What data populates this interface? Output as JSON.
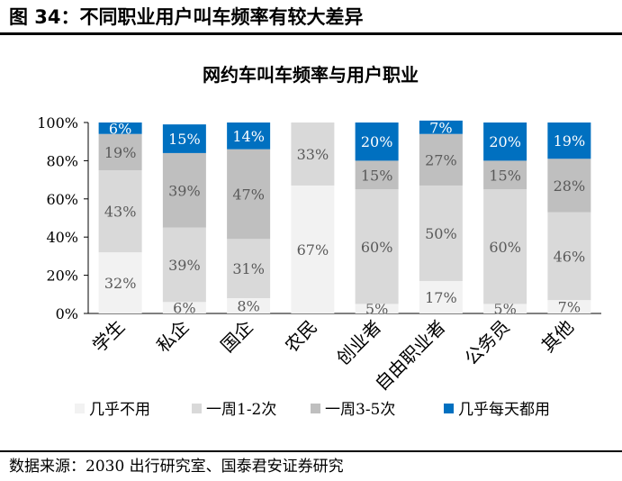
{
  "figure": {
    "title": "图 34：不同职业用户叫车频率有较大差异",
    "source": "数据来源：2030 出行研究室、国泰君安证券研究"
  },
  "colors": {
    "series": [
      "#f2f2f2",
      "#d9d9d9",
      "#bfbfbf",
      "#0070c0"
    ],
    "label_dark": "#595959",
    "label_light": "#ffffff"
  },
  "chart_data": {
    "type": "bar",
    "stacked": "percent",
    "title": "网约车叫车频率与用户职业",
    "xlabel": "",
    "ylabel": "",
    "ylim": [
      0,
      100
    ],
    "yticks": [
      "0%",
      "20%",
      "40%",
      "60%",
      "80%",
      "100%"
    ],
    "grid": false,
    "legend": "bottom",
    "categories": [
      "学生",
      "私企",
      "国企",
      "农民",
      "创业者",
      "自由职业者",
      "公务员",
      "其他"
    ],
    "series": [
      {
        "name": "几乎不用",
        "values": [
          32,
          6,
          8,
          67,
          5,
          17,
          5,
          7
        ],
        "labels": [
          "32%",
          "6%",
          "8%",
          "67%",
          "5%",
          "17%",
          "5%",
          "7%"
        ]
      },
      {
        "name": "一周1-2次",
        "values": [
          43,
          39,
          31,
          33,
          60,
          50,
          60,
          46
        ],
        "labels": [
          "43%",
          "39%",
          "31%",
          "33%",
          "60%",
          "50%",
          "60%",
          "46%"
        ]
      },
      {
        "name": "一周3-5次",
        "values": [
          19,
          39,
          47,
          0,
          15,
          27,
          15,
          28
        ],
        "labels": [
          "19%",
          "39%",
          "47%",
          "",
          "15%",
          "27%",
          "15%",
          "28%"
        ]
      },
      {
        "name": "几乎每天都用",
        "values": [
          6,
          15,
          14,
          0,
          20,
          7,
          20,
          19
        ],
        "labels": [
          "6%",
          "15%",
          "14%",
          "",
          "20%",
          "7%",
          "20%",
          "19%"
        ]
      }
    ]
  }
}
